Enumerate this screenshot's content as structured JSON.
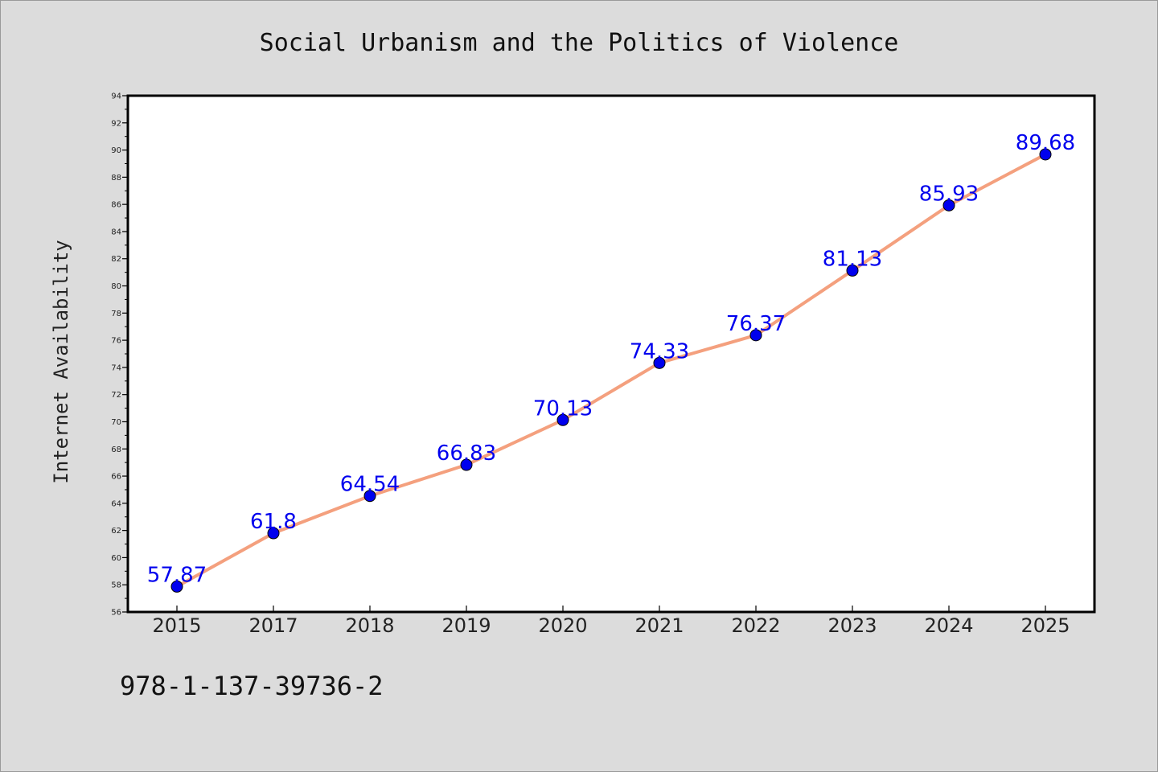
{
  "chart_data": {
    "type": "line",
    "title": "Social Urbanism and the Politics of Violence",
    "xlabel": "",
    "ylabel": "Internet Availability",
    "categories": [
      "2015",
      "2017",
      "2018",
      "2019",
      "2020",
      "2021",
      "2022",
      "2023",
      "2024",
      "2025"
    ],
    "series": [
      {
        "values": [
          57.87,
          61.8,
          64.54,
          66.83,
          70.13,
          74.33,
          76.37,
          81.13,
          85.93,
          89.68
        ],
        "labels": [
          "57.87",
          "61.8",
          "64.54",
          "66.83",
          "70.13",
          "74.33",
          "76.37",
          "81.13",
          "85.93",
          "89.68"
        ],
        "line_color": "#f4a07e",
        "marker_color": "#0000ee"
      }
    ],
    "ylim": [
      56,
      94
    ],
    "yticks": [
      "56",
      "58",
      "60",
      "62",
      "64",
      "66",
      "68",
      "70",
      "72",
      "74",
      "76",
      "78",
      "80",
      "82",
      "84",
      "86",
      "88",
      "90",
      "92",
      "94"
    ],
    "grid": false,
    "legend": "none",
    "label_color": "#0000ee"
  },
  "footer": {
    "isbn": "978-1-137-39736-2"
  },
  "colors": {
    "background": "#dcdcdc",
    "plot_background": "#ffffff"
  }
}
